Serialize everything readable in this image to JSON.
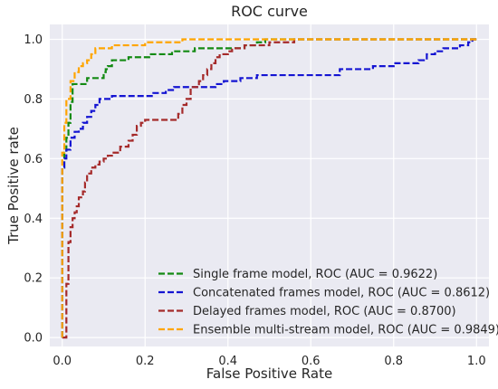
{
  "chart_data": {
    "type": "line",
    "title": "ROC curve",
    "xlabel": "False Positive Rate",
    "ylabel": "True Positive rate",
    "xlim": [
      -0.03,
      1.03
    ],
    "ylim": [
      -0.03,
      1.05
    ],
    "xticks": [
      0.0,
      0.2,
      0.4,
      0.6,
      0.8,
      1.0
    ],
    "yticks": [
      0.0,
      0.2,
      0.4,
      0.6,
      0.8,
      1.0
    ],
    "xtick_labels": [
      "0.0",
      "0.2",
      "0.4",
      "0.6",
      "0.8",
      "1.0"
    ],
    "ytick_labels": [
      "0.0",
      "0.2",
      "0.4",
      "0.6",
      "0.8",
      "1.0"
    ],
    "grid": true,
    "legend_position": "lower-right",
    "series": [
      {
        "name": "Single frame model, ROC (AUC = 0.9622)",
        "color": "#138a13",
        "style": "dashed",
        "points": [
          [
            0,
            0
          ],
          [
            0,
            0.57
          ],
          [
            0.005,
            0.57
          ],
          [
            0.005,
            0.62
          ],
          [
            0.01,
            0.62
          ],
          [
            0.01,
            0.67
          ],
          [
            0.015,
            0.67
          ],
          [
            0.015,
            0.72
          ],
          [
            0.02,
            0.72
          ],
          [
            0.02,
            0.79
          ],
          [
            0.025,
            0.79
          ],
          [
            0.025,
            0.85
          ],
          [
            0.06,
            0.85
          ],
          [
            0.06,
            0.87
          ],
          [
            0.1,
            0.87
          ],
          [
            0.1,
            0.89
          ],
          [
            0.105,
            0.89
          ],
          [
            0.105,
            0.9
          ],
          [
            0.11,
            0.9
          ],
          [
            0.11,
            0.91
          ],
          [
            0.12,
            0.91
          ],
          [
            0.12,
            0.93
          ],
          [
            0.16,
            0.93
          ],
          [
            0.16,
            0.94
          ],
          [
            0.21,
            0.94
          ],
          [
            0.21,
            0.95
          ],
          [
            0.265,
            0.95
          ],
          [
            0.265,
            0.96
          ],
          [
            0.32,
            0.96
          ],
          [
            0.32,
            0.97
          ],
          [
            0.44,
            0.97
          ],
          [
            0.44,
            0.98
          ],
          [
            0.47,
            0.98
          ],
          [
            0.47,
            0.99
          ],
          [
            0.49,
            0.99
          ],
          [
            0.49,
            1.0
          ],
          [
            1.0,
            1.0
          ]
        ]
      },
      {
        "name": "Concatenated frames model, ROC (AUC = 0.8612)",
        "color": "#1414d2",
        "style": "dashed",
        "points": [
          [
            0,
            0
          ],
          [
            0,
            0.57
          ],
          [
            0.005,
            0.57
          ],
          [
            0.005,
            0.6
          ],
          [
            0.01,
            0.6
          ],
          [
            0.01,
            0.63
          ],
          [
            0.02,
            0.63
          ],
          [
            0.02,
            0.67
          ],
          [
            0.03,
            0.67
          ],
          [
            0.03,
            0.69
          ],
          [
            0.04,
            0.69
          ],
          [
            0.04,
            0.7
          ],
          [
            0.05,
            0.7
          ],
          [
            0.05,
            0.72
          ],
          [
            0.06,
            0.72
          ],
          [
            0.06,
            0.74
          ],
          [
            0.07,
            0.74
          ],
          [
            0.07,
            0.76
          ],
          [
            0.08,
            0.76
          ],
          [
            0.08,
            0.78
          ],
          [
            0.09,
            0.78
          ],
          [
            0.09,
            0.8
          ],
          [
            0.12,
            0.8
          ],
          [
            0.12,
            0.81
          ],
          [
            0.22,
            0.81
          ],
          [
            0.22,
            0.82
          ],
          [
            0.25,
            0.82
          ],
          [
            0.25,
            0.83
          ],
          [
            0.27,
            0.83
          ],
          [
            0.27,
            0.84
          ],
          [
            0.37,
            0.84
          ],
          [
            0.37,
            0.85
          ],
          [
            0.39,
            0.85
          ],
          [
            0.39,
            0.86
          ],
          [
            0.43,
            0.86
          ],
          [
            0.43,
            0.87
          ],
          [
            0.47,
            0.87
          ],
          [
            0.47,
            0.88
          ],
          [
            0.67,
            0.88
          ],
          [
            0.67,
            0.9
          ],
          [
            0.75,
            0.9
          ],
          [
            0.75,
            0.91
          ],
          [
            0.8,
            0.91
          ],
          [
            0.8,
            0.92
          ],
          [
            0.86,
            0.92
          ],
          [
            0.86,
            0.93
          ],
          [
            0.88,
            0.93
          ],
          [
            0.88,
            0.95
          ],
          [
            0.9,
            0.95
          ],
          [
            0.9,
            0.96
          ],
          [
            0.92,
            0.96
          ],
          [
            0.92,
            0.97
          ],
          [
            0.96,
            0.97
          ],
          [
            0.96,
            0.98
          ],
          [
            0.98,
            0.98
          ],
          [
            0.98,
            0.99
          ],
          [
            0.99,
            0.99
          ],
          [
            0.99,
            1.0
          ],
          [
            1.0,
            1.0
          ]
        ]
      },
      {
        "name": "Delayed frames model, ROC (AUC = 0.8700)",
        "color": "#a52a2a",
        "style": "dashed",
        "points": [
          [
            0,
            0
          ],
          [
            0.01,
            0
          ],
          [
            0.01,
            0.18
          ],
          [
            0.015,
            0.18
          ],
          [
            0.015,
            0.32
          ],
          [
            0.02,
            0.32
          ],
          [
            0.02,
            0.37
          ],
          [
            0.025,
            0.37
          ],
          [
            0.025,
            0.4
          ],
          [
            0.03,
            0.4
          ],
          [
            0.03,
            0.42
          ],
          [
            0.035,
            0.42
          ],
          [
            0.035,
            0.44
          ],
          [
            0.04,
            0.44
          ],
          [
            0.04,
            0.47
          ],
          [
            0.05,
            0.47
          ],
          [
            0.05,
            0.49
          ],
          [
            0.055,
            0.49
          ],
          [
            0.055,
            0.52
          ],
          [
            0.06,
            0.52
          ],
          [
            0.06,
            0.55
          ],
          [
            0.07,
            0.55
          ],
          [
            0.07,
            0.57
          ],
          [
            0.08,
            0.57
          ],
          [
            0.08,
            0.58
          ],
          [
            0.09,
            0.58
          ],
          [
            0.09,
            0.59
          ],
          [
            0.1,
            0.59
          ],
          [
            0.1,
            0.6
          ],
          [
            0.11,
            0.6
          ],
          [
            0.11,
            0.61
          ],
          [
            0.12,
            0.61
          ],
          [
            0.12,
            0.62
          ],
          [
            0.14,
            0.62
          ],
          [
            0.14,
            0.64
          ],
          [
            0.16,
            0.64
          ],
          [
            0.16,
            0.66
          ],
          [
            0.17,
            0.66
          ],
          [
            0.17,
            0.68
          ],
          [
            0.18,
            0.68
          ],
          [
            0.18,
            0.71
          ],
          [
            0.19,
            0.71
          ],
          [
            0.19,
            0.72
          ],
          [
            0.2,
            0.72
          ],
          [
            0.2,
            0.73
          ],
          [
            0.28,
            0.73
          ],
          [
            0.28,
            0.75
          ],
          [
            0.29,
            0.75
          ],
          [
            0.29,
            0.78
          ],
          [
            0.3,
            0.78
          ],
          [
            0.3,
            0.8
          ],
          [
            0.31,
            0.8
          ],
          [
            0.31,
            0.84
          ],
          [
            0.33,
            0.84
          ],
          [
            0.33,
            0.86
          ],
          [
            0.34,
            0.86
          ],
          [
            0.34,
            0.88
          ],
          [
            0.35,
            0.88
          ],
          [
            0.35,
            0.9
          ],
          [
            0.36,
            0.9
          ],
          [
            0.36,
            0.92
          ],
          [
            0.37,
            0.92
          ],
          [
            0.37,
            0.94
          ],
          [
            0.38,
            0.94
          ],
          [
            0.38,
            0.95
          ],
          [
            0.4,
            0.95
          ],
          [
            0.4,
            0.96
          ],
          [
            0.41,
            0.96
          ],
          [
            0.41,
            0.97
          ],
          [
            0.44,
            0.97
          ],
          [
            0.44,
            0.98
          ],
          [
            0.5,
            0.98
          ],
          [
            0.5,
            0.99
          ],
          [
            0.56,
            0.99
          ],
          [
            0.56,
            1.0
          ],
          [
            1.0,
            1.0
          ]
        ]
      },
      {
        "name": "Ensemble multi-stream model, ROC (AUC = 0.9849)",
        "color": "#ffa500",
        "style": "dashed",
        "points": [
          [
            0,
            0
          ],
          [
            0,
            0.62
          ],
          [
            0.005,
            0.62
          ],
          [
            0.005,
            0.72
          ],
          [
            0.01,
            0.72
          ],
          [
            0.01,
            0.8
          ],
          [
            0.02,
            0.8
          ],
          [
            0.02,
            0.86
          ],
          [
            0.03,
            0.86
          ],
          [
            0.03,
            0.89
          ],
          [
            0.04,
            0.89
          ],
          [
            0.04,
            0.91
          ],
          [
            0.05,
            0.91
          ],
          [
            0.05,
            0.92
          ],
          [
            0.06,
            0.92
          ],
          [
            0.06,
            0.93
          ],
          [
            0.07,
            0.93
          ],
          [
            0.07,
            0.95
          ],
          [
            0.08,
            0.95
          ],
          [
            0.08,
            0.97
          ],
          [
            0.12,
            0.97
          ],
          [
            0.12,
            0.98
          ],
          [
            0.2,
            0.98
          ],
          [
            0.2,
            0.99
          ],
          [
            0.29,
            0.99
          ],
          [
            0.29,
            1.0
          ],
          [
            1.0,
            1.0
          ]
        ]
      }
    ]
  }
}
